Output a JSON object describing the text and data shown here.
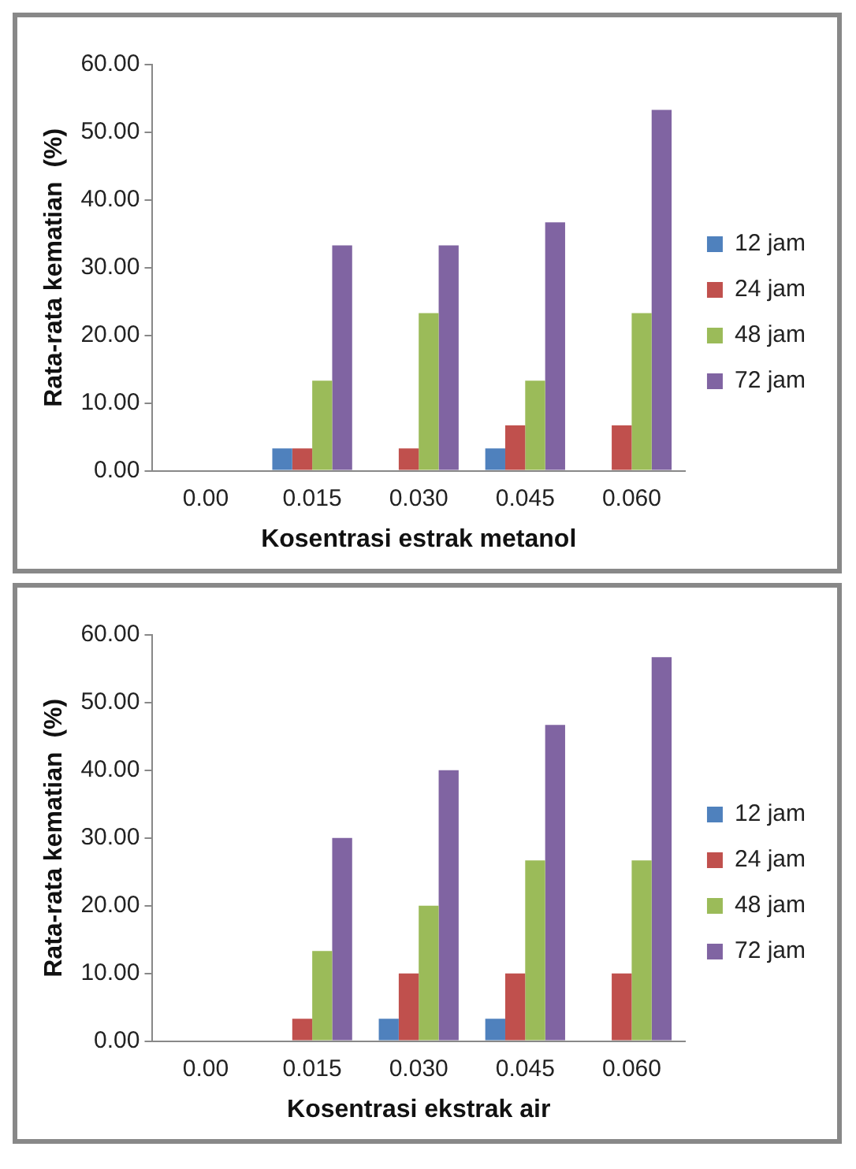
{
  "chart_data": [
    {
      "type": "bar",
      "xlabel": "Kosentrasi estrak metanol",
      "ylabel": "Rata-rata kematian  (%)",
      "categories": [
        "0.00",
        "0.015",
        "0.030",
        "0.045",
        "0.060"
      ],
      "series": [
        {
          "name": "12 jam",
          "color": "#4f81bd",
          "values": [
            0,
            3.3,
            0,
            3.3,
            0
          ]
        },
        {
          "name": "24 jam",
          "color": "#c0504d",
          "values": [
            0,
            3.3,
            3.3,
            6.7,
            6.7
          ]
        },
        {
          "name": "48 jam",
          "color": "#9bbb59",
          "values": [
            0,
            13.3,
            23.3,
            13.3,
            23.3
          ]
        },
        {
          "name": "72 jam",
          "color": "#8064a2",
          "values": [
            0,
            33.3,
            33.3,
            36.7,
            53.3
          ]
        }
      ],
      "ylim": [
        0,
        60
      ],
      "yticks": [
        {
          "value": 0,
          "label": "0.00"
        },
        {
          "value": 10,
          "label": "10.00"
        },
        {
          "value": 20,
          "label": "20.00"
        },
        {
          "value": 30,
          "label": "30.00"
        },
        {
          "value": 40,
          "label": "40.00"
        },
        {
          "value": 50,
          "label": "50.00"
        },
        {
          "value": 60,
          "label": "60.00"
        }
      ],
      "grid": false,
      "legend": "right"
    },
    {
      "type": "bar",
      "xlabel": "Kosentrasi ekstrak air",
      "ylabel": "Rata-rata kematian  (%)",
      "categories": [
        "0.00",
        "0.015",
        "0.030",
        "0.045",
        "0.060"
      ],
      "series": [
        {
          "name": "12 jam",
          "color": "#4f81bd",
          "values": [
            0,
            0,
            3.3,
            3.3,
            0
          ]
        },
        {
          "name": "24 jam",
          "color": "#c0504d",
          "values": [
            0,
            3.3,
            10,
            10,
            10
          ]
        },
        {
          "name": "48 jam",
          "color": "#9bbb59",
          "values": [
            0,
            13.3,
            20,
            26.7,
            26.7
          ]
        },
        {
          "name": "72 jam",
          "color": "#8064a2",
          "values": [
            0,
            30,
            40,
            46.7,
            56.7
          ]
        }
      ],
      "ylim": [
        0,
        60
      ],
      "yticks": [
        {
          "value": 0,
          "label": "0.00"
        },
        {
          "value": 10,
          "label": "10.00"
        },
        {
          "value": 20,
          "label": "20.00"
        },
        {
          "value": 30,
          "label": "30.00"
        },
        {
          "value": 40,
          "label": "40.00"
        },
        {
          "value": 50,
          "label": "50.00"
        },
        {
          "value": 60,
          "label": "60.00"
        }
      ],
      "grid": false,
      "legend": "right"
    }
  ]
}
